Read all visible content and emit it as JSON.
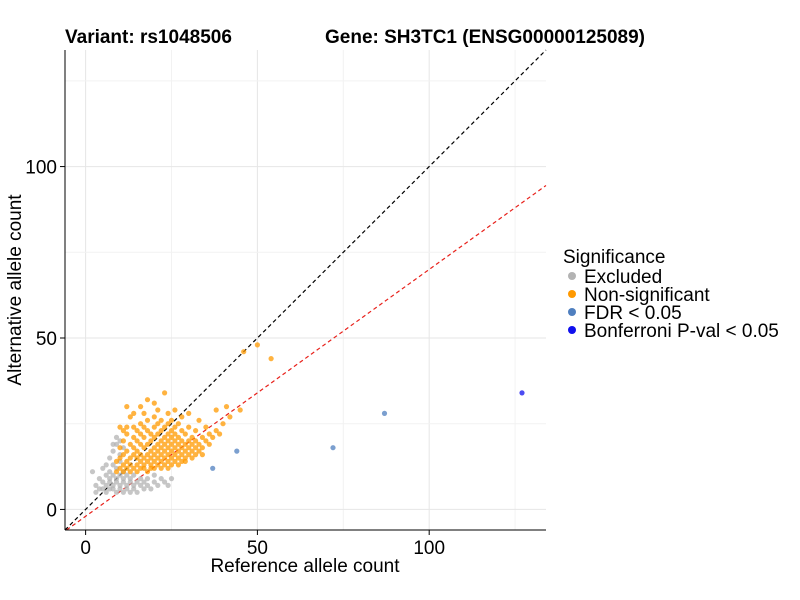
{
  "chart_data": {
    "type": "scatter",
    "title_left": "Variant: rs1048506",
    "title_right": "Gene: SH3TC1 (ENSG00000125089)",
    "xlabel": "Reference allele count",
    "ylabel": "Alternative allele count",
    "xlim": [
      -6,
      134
    ],
    "ylim": [
      -6,
      134
    ],
    "xticks": [
      0,
      50,
      100
    ],
    "yticks": [
      0,
      50,
      100
    ],
    "grid": true,
    "legend_position": "right",
    "legend": {
      "title": "Significance",
      "entries": [
        {
          "label": "Excluded",
          "color": "#b3b3b3"
        },
        {
          "label": "Non-significant",
          "color": "#ff9900"
        },
        {
          "label": "FDR < 0.05",
          "color": "#4f7fbf"
        },
        {
          "label": "Bonferroni P-val < 0.05",
          "color": "#1010ee"
        }
      ]
    },
    "reference_lines": [
      {
        "slope": 1.0,
        "intercept": 0,
        "color": "#000000",
        "style": "dashed"
      },
      {
        "slope": 0.72,
        "intercept": -2,
        "color": "#e8211b",
        "style": "dashed"
      }
    ],
    "series": [
      {
        "name": "Excluded",
        "color": "#b3b3b3",
        "points": [
          [
            2,
            11
          ],
          [
            3,
            7
          ],
          [
            3,
            5
          ],
          [
            4,
            9
          ],
          [
            4,
            6
          ],
          [
            5,
            8
          ],
          [
            5,
            6
          ],
          [
            5,
            12
          ],
          [
            6,
            7
          ],
          [
            6,
            10
          ],
          [
            6,
            5
          ],
          [
            7,
            8
          ],
          [
            7,
            9
          ],
          [
            7,
            6
          ],
          [
            7,
            11
          ],
          [
            8,
            10
          ],
          [
            8,
            7
          ],
          [
            8,
            6
          ],
          [
            8,
            13
          ],
          [
            9,
            9
          ],
          [
            9,
            8
          ],
          [
            9,
            5
          ],
          [
            9,
            12
          ],
          [
            10,
            7
          ],
          [
            10,
            10
          ],
          [
            10,
            6
          ],
          [
            10,
            14
          ],
          [
            11,
            9
          ],
          [
            11,
            8
          ],
          [
            11,
            5
          ],
          [
            11,
            11
          ],
          [
            12,
            7
          ],
          [
            12,
            10
          ],
          [
            12,
            6
          ],
          [
            13,
            8
          ],
          [
            13,
            9
          ],
          [
            13,
            5
          ],
          [
            14,
            7
          ],
          [
            14,
            10
          ],
          [
            14,
            6
          ],
          [
            15,
            8
          ],
          [
            15,
            5
          ],
          [
            16,
            9
          ],
          [
            16,
            7
          ],
          [
            17,
            6
          ],
          [
            17,
            8
          ],
          [
            18,
            7
          ],
          [
            18,
            9
          ],
          [
            19,
            6
          ],
          [
            20,
            8
          ],
          [
            20,
            10
          ],
          [
            21,
            7
          ],
          [
            22,
            9
          ],
          [
            23,
            8
          ],
          [
            24,
            7
          ],
          [
            25,
            9
          ],
          [
            7,
            15
          ],
          [
            8,
            17
          ],
          [
            9,
            19
          ],
          [
            6,
            13
          ],
          [
            10,
            16
          ],
          [
            11,
            18
          ],
          [
            9,
            21
          ],
          [
            8,
            19
          ],
          [
            10,
            20
          ]
        ]
      },
      {
        "name": "Non-significant",
        "color": "#ff9900",
        "points": [
          [
            9,
            11
          ],
          [
            9,
            14
          ],
          [
            10,
            12
          ],
          [
            10,
            15
          ],
          [
            10,
            18
          ],
          [
            10,
            24
          ],
          [
            11,
            13
          ],
          [
            11,
            16
          ],
          [
            11,
            20
          ],
          [
            11,
            11
          ],
          [
            12,
            14
          ],
          [
            12,
            17
          ],
          [
            12,
            12
          ],
          [
            12,
            22
          ],
          [
            12,
            24
          ],
          [
            13,
            13
          ],
          [
            13,
            15
          ],
          [
            13,
            19
          ],
          [
            13,
            11
          ],
          [
            14,
            12
          ],
          [
            14,
            16
          ],
          [
            14,
            18
          ],
          [
            14,
            21
          ],
          [
            14,
            24
          ],
          [
            15,
            13
          ],
          [
            15,
            15
          ],
          [
            15,
            17
          ],
          [
            15,
            20
          ],
          [
            15,
            23
          ],
          [
            15,
            11
          ],
          [
            16,
            12
          ],
          [
            16,
            14
          ],
          [
            16,
            16
          ],
          [
            16,
            19
          ],
          [
            16,
            22
          ],
          [
            16,
            25
          ],
          [
            17,
            13
          ],
          [
            17,
            15
          ],
          [
            17,
            18
          ],
          [
            17,
            21
          ],
          [
            17,
            12
          ],
          [
            17,
            24
          ],
          [
            18,
            11
          ],
          [
            18,
            14
          ],
          [
            18,
            16
          ],
          [
            18,
            19
          ],
          [
            18,
            23
          ],
          [
            18,
            26
          ],
          [
            19,
            12
          ],
          [
            19,
            15
          ],
          [
            19,
            17
          ],
          [
            19,
            20
          ],
          [
            19,
            22
          ],
          [
            19,
            13
          ],
          [
            20,
            14
          ],
          [
            20,
            16
          ],
          [
            20,
            18
          ],
          [
            20,
            21
          ],
          [
            20,
            24
          ],
          [
            20,
            12
          ],
          [
            20,
            27
          ],
          [
            21,
            13
          ],
          [
            21,
            15
          ],
          [
            21,
            17
          ],
          [
            21,
            19
          ],
          [
            21,
            22
          ],
          [
            21,
            25
          ],
          [
            21,
            29
          ],
          [
            22,
            12
          ],
          [
            22,
            14
          ],
          [
            22,
            16
          ],
          [
            22,
            18
          ],
          [
            22,
            20
          ],
          [
            22,
            23
          ],
          [
            22,
            26
          ],
          [
            23,
            13
          ],
          [
            23,
            15
          ],
          [
            23,
            17
          ],
          [
            23,
            19
          ],
          [
            23,
            21
          ],
          [
            23,
            24
          ],
          [
            23,
            34
          ],
          [
            24,
            12
          ],
          [
            24,
            14
          ],
          [
            24,
            16
          ],
          [
            24,
            18
          ],
          [
            24,
            20
          ],
          [
            24,
            22
          ],
          [
            24,
            25
          ],
          [
            24,
            28
          ],
          [
            25,
            13
          ],
          [
            25,
            15
          ],
          [
            25,
            17
          ],
          [
            25,
            19
          ],
          [
            25,
            21
          ],
          [
            25,
            23
          ],
          [
            25,
            26
          ],
          [
            26,
            14
          ],
          [
            26,
            16
          ],
          [
            26,
            18
          ],
          [
            26,
            20
          ],
          [
            26,
            22
          ],
          [
            26,
            24
          ],
          [
            26,
            29
          ],
          [
            27,
            13
          ],
          [
            27,
            15
          ],
          [
            27,
            17
          ],
          [
            27,
            19
          ],
          [
            27,
            21
          ],
          [
            27,
            25
          ],
          [
            28,
            14
          ],
          [
            28,
            16
          ],
          [
            28,
            18
          ],
          [
            28,
            20
          ],
          [
            28,
            23
          ],
          [
            28,
            27
          ],
          [
            29,
            15
          ],
          [
            29,
            17
          ],
          [
            29,
            19
          ],
          [
            29,
            22
          ],
          [
            29,
            14
          ],
          [
            30,
            16
          ],
          [
            30,
            18
          ],
          [
            30,
            20
          ],
          [
            30,
            24
          ],
          [
            30,
            28
          ],
          [
            31,
            15
          ],
          [
            31,
            17
          ],
          [
            31,
            19
          ],
          [
            31,
            21
          ],
          [
            32,
            16
          ],
          [
            32,
            18
          ],
          [
            32,
            20
          ],
          [
            32,
            23
          ],
          [
            33,
            17
          ],
          [
            33,
            19
          ],
          [
            33,
            26
          ],
          [
            34,
            18
          ],
          [
            34,
            21
          ],
          [
            34,
            16
          ],
          [
            35,
            20
          ],
          [
            35,
            24
          ],
          [
            36,
            19
          ],
          [
            36,
            22
          ],
          [
            37,
            21
          ],
          [
            38,
            23
          ],
          [
            38,
            29
          ],
          [
            39,
            22
          ],
          [
            40,
            25
          ],
          [
            41,
            30
          ],
          [
            42,
            27
          ],
          [
            45,
            29
          ],
          [
            46,
            46
          ],
          [
            50,
            48
          ],
          [
            54,
            44
          ],
          [
            13,
            27
          ],
          [
            12,
            30
          ],
          [
            16,
            30
          ],
          [
            18,
            32
          ],
          [
            20,
            31
          ],
          [
            14,
            28
          ],
          [
            11,
            23
          ],
          [
            17,
            28
          ]
        ]
      },
      {
        "name": "FDR < 0.05",
        "color": "#4f7fbf",
        "points": [
          [
            37,
            12
          ],
          [
            44,
            17
          ],
          [
            72,
            18
          ],
          [
            87,
            28
          ]
        ]
      },
      {
        "name": "Bonferroni P-val < 0.05",
        "color": "#1010ee",
        "points": [
          [
            127,
            34
          ]
        ]
      }
    ]
  }
}
